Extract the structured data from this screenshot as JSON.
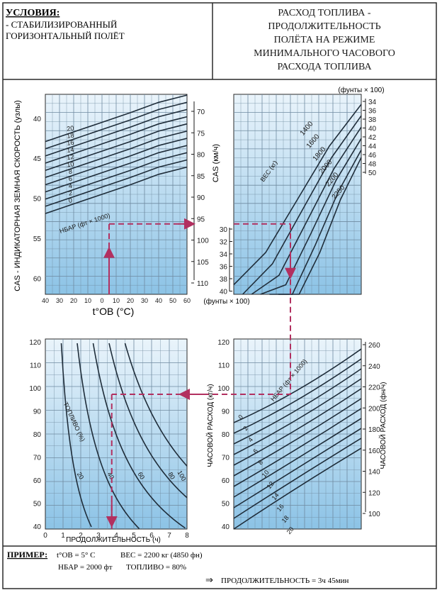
{
  "header": {
    "conditions_title": "УСЛОВИЯ:",
    "conditions_line1": "- СТАБИЛИЗИРОВАННЫЙ",
    "conditions_line2": "ГОРИЗОНТАЛЬНЫЙ ПОЛЁТ",
    "title_lines": [
      "РАСХОД ТОПЛИВА -",
      "ПРОДОЛЖИТЕЛЬНОСТЬ",
      "ПОЛЁТА НА РЕЖИМЕ",
      "МИНИМАЛЬНОГО ЧАСОВОГО",
      "РАСХОДА  ТОПЛИВА"
    ]
  },
  "colors": {
    "grid_fill": "#cfe6f6",
    "grid_line": "#6f8aa0",
    "curve": "#1f2d3a",
    "arrow": "#b23060",
    "frame": "#2a2a2a"
  },
  "chart_data": [
    {
      "type": "line",
      "id": "tl",
      "xlabel": "t°ОВ (°C)",
      "ylabel_left": "CAS - ИНДИКАТОРНАЯ ЗЕМНАЯ СКОРОСТЬ (узлы)",
      "ylabel_right": "CAS (км/ч)",
      "x_ticks": [
        "40",
        "30",
        "20",
        "10",
        "0",
        "10",
        "20",
        "30",
        "40",
        "50",
        "60"
      ],
      "y_ticks_left": [
        "40",
        "45",
        "50",
        "55",
        "60"
      ],
      "y_ticks_right": [
        "70",
        "75",
        "80",
        "85",
        "90",
        "95",
        "100",
        "105",
        "110"
      ],
      "curve_labels": [
        "20",
        "18",
        "16",
        "14",
        "12",
        "10",
        "8",
        "6",
        "4",
        "2",
        "0"
      ],
      "curve_axis_label": "HБАР (фт × 1000)",
      "series": [
        {
          "name": "20",
          "x": [
            -40,
            -20,
            0,
            20,
            40
          ],
          "y": [
            42.9,
            41.7,
            40.5,
            39.3,
            38.0
          ]
        },
        {
          "name": "18",
          "x": [
            -40,
            -20,
            0,
            20,
            40
          ],
          "y": [
            43.8,
            42.6,
            41.4,
            40.2,
            38.9
          ]
        },
        {
          "name": "16",
          "x": [
            -40,
            -20,
            0,
            20,
            40
          ],
          "y": [
            44.7,
            43.5,
            42.3,
            41.1,
            39.8
          ]
        },
        {
          "name": "14",
          "x": [
            -40,
            -20,
            0,
            20,
            40
          ],
          "y": [
            45.6,
            44.4,
            43.2,
            42.0,
            40.7
          ]
        },
        {
          "name": "12",
          "x": [
            -40,
            -20,
            0,
            20,
            40
          ],
          "y": [
            46.5,
            45.3,
            44.1,
            42.9,
            41.6
          ]
        },
        {
          "name": "10",
          "x": [
            -40,
            -20,
            0,
            20,
            40
          ],
          "y": [
            47.4,
            46.2,
            45.0,
            43.8,
            42.5
          ]
        },
        {
          "name": "8",
          "x": [
            -40,
            -20,
            0,
            20,
            40
          ],
          "y": [
            48.3,
            47.1,
            45.9,
            44.7,
            43.4
          ]
        },
        {
          "name": "6",
          "x": [
            -40,
            -20,
            0,
            20,
            40
          ],
          "y": [
            49.2,
            48.0,
            46.8,
            45.6,
            44.3
          ]
        },
        {
          "name": "4",
          "x": [
            -40,
            -20,
            0,
            20,
            40
          ],
          "y": [
            50.1,
            48.9,
            47.7,
            46.5,
            45.2
          ]
        },
        {
          "name": "2",
          "x": [
            -40,
            -20,
            0,
            20,
            40
          ],
          "y": [
            51.0,
            49.8,
            48.6,
            47.4,
            46.1
          ]
        },
        {
          "name": "0",
          "x": [
            -40,
            -20,
            0,
            20,
            40
          ],
          "y": [
            51.9,
            50.7,
            49.5,
            48.3,
            47.0
          ]
        }
      ],
      "example_path": {
        "x": [
          5,
          5,
          60
        ],
        "y": [
          62,
          53.2,
          53.2
        ]
      }
    },
    {
      "type": "line",
      "id": "tr",
      "top_axis_label": "(фунты × 100)",
      "bottom_axis_label": "(фунты × 100)",
      "right_ticks": [
        "34",
        "36",
        "38",
        "40",
        "42",
        "44",
        "46",
        "48",
        "50"
      ],
      "left_ticks": [
        "30",
        "32",
        "34",
        "36",
        "38",
        "40"
      ],
      "curve_axis_label": "ВЕС (кг)",
      "series_names": [
        "1400",
        "1600",
        "1800",
        "2000",
        "2200",
        "2250"
      ],
      "series": [
        {
          "name": "1400",
          "x": [
            0,
            0.25,
            0.5,
            0.75,
            1
          ],
          "y": [
            0.05,
            0.22,
            0.5,
            0.78,
            1.0
          ]
        },
        {
          "name": "1600",
          "x": [
            0,
            0.25,
            0.5,
            0.75,
            1
          ],
          "y": [
            0.0,
            0.16,
            0.44,
            0.72,
            0.94
          ]
        },
        {
          "name": "1800",
          "x": [
            0,
            0.25,
            0.5,
            0.75,
            1
          ],
          "y": [
            0.0,
            0.1,
            0.38,
            0.66,
            0.88
          ]
        },
        {
          "name": "2000",
          "x": [
            0,
            0.25,
            0.5,
            0.75,
            1
          ],
          "y": [
            0.0,
            0.05,
            0.32,
            0.6,
            0.82
          ]
        },
        {
          "name": "2200",
          "x": [
            0,
            0.25,
            0.5,
            0.75,
            1
          ],
          "y": [
            0.0,
            0.0,
            0.26,
            0.54,
            0.76
          ]
        },
        {
          "name": "2250",
          "x": [
            0,
            0.25,
            0.5,
            0.75,
            1
          ],
          "y": [
            0.0,
            0.0,
            0.22,
            0.5,
            0.72
          ]
        }
      ]
    },
    {
      "type": "line",
      "id": "br",
      "ylabel_left": "ЧАСОВОЙ РАСХОД (кг/ч)",
      "ylabel_right": "ЧАСОВОЙ РАСХОД (фн/ч)",
      "left_ticks": [
        "120",
        "110",
        "100",
        "90",
        "80",
        "70",
        "60",
        "50",
        "40"
      ],
      "right_ticks": [
        "260",
        "240",
        "220",
        "200",
        "180",
        "160",
        "140",
        "120",
        "100"
      ],
      "curve_axis_label": "HБАР (фт × 1000)",
      "curve_labels": [
        "0",
        "2",
        "4",
        "6",
        "8",
        "10",
        "12",
        "14",
        "16",
        "18",
        "20"
      ]
    },
    {
      "type": "line",
      "id": "bl",
      "xlabel": "ПРОДОЛЖИТЕЛЬНОСТЬ (ч)",
      "x_ticks": [
        "0",
        "1",
        "2",
        "3",
        "4",
        "5",
        "6",
        "7",
        "8"
      ],
      "y_ticks": [
        "120",
        "110",
        "100",
        "90",
        "80",
        "70",
        "60",
        "50",
        "40"
      ],
      "curve_axis_label": "ТОПЛИВО (%)",
      "curve_labels": [
        "100",
        "80",
        "60",
        "40",
        "20"
      ]
    }
  ],
  "example": {
    "label": "ПРИМЕР:",
    "line1_temp": "t°ОВ = 5° C",
    "line1_weight": "ВЕС = 2200 кг (4850 фн)",
    "line2_alt": "HБАР = 2000 фт",
    "line2_fuel": "ТОПЛИВО = 80%",
    "result_arrow": "⇒",
    "result": "ПРОДОЛЖИТЕЛЬНОСТЬ = 3ч 45мин"
  }
}
